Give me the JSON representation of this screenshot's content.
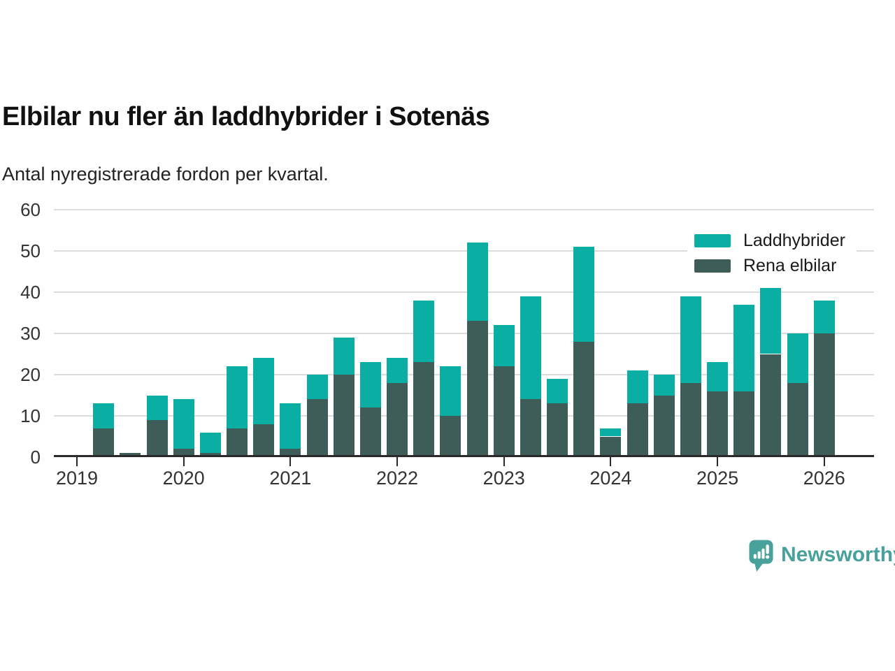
{
  "header": {
    "title": "Elbilar nu fler än laddhybrider i Sotenäs",
    "subtitle": "Antal nyregistrerade fordon per kvartal."
  },
  "chart_data": {
    "type": "bar",
    "stacked": true,
    "title": "Elbilar nu fler än laddhybrider i Sotenäs",
    "subtitle": "Antal nyregistrerade fordon per kvartal.",
    "xlabel": "",
    "ylabel": "",
    "ylim": [
      0,
      60
    ],
    "yticks": [
      0,
      10,
      20,
      30,
      40,
      50,
      60
    ],
    "grid": "horizontal",
    "legend_position": "top-right",
    "x_tick_labels": [
      "2019",
      "2020",
      "2021",
      "2022",
      "2023",
      "2024",
      "2025",
      "2026"
    ],
    "categories": [
      "2019 Q1",
      "2019 Q2",
      "2019 Q3",
      "2019 Q4",
      "2020 Q1",
      "2020 Q2",
      "2020 Q3",
      "2020 Q4",
      "2021 Q1",
      "2021 Q2",
      "2021 Q3",
      "2021 Q4",
      "2022 Q1",
      "2022 Q2",
      "2022 Q3",
      "2022 Q4",
      "2023 Q1",
      "2023 Q2",
      "2023 Q3",
      "2023 Q4",
      "2024 Q1",
      "2024 Q2",
      "2024 Q3",
      "2024 Q4",
      "2025 Q1",
      "2025 Q2",
      "2025 Q3",
      "2025 Q4",
      "2026 Q1"
    ],
    "series": [
      {
        "name": "Laddhybrider",
        "color": "#0baea3",
        "values": [
          0,
          6,
          0,
          6,
          12,
          5,
          15,
          16,
          11,
          6,
          9,
          11,
          6,
          15,
          12,
          19,
          10,
          25,
          6,
          23,
          2,
          8,
          5,
          21,
          7,
          21,
          16,
          12,
          8
        ]
      },
      {
        "name": "Rena elbilar",
        "color": "#3e5d58",
        "values": [
          0,
          7,
          1,
          9,
          2,
          1,
          7,
          8,
          2,
          14,
          20,
          12,
          18,
          23,
          10,
          33,
          22,
          14,
          13,
          28,
          5,
          13,
          15,
          18,
          16,
          16,
          25,
          18,
          30
        ]
      }
    ],
    "totals": [
      0,
      13,
      1,
      15,
      14,
      6,
      22,
      24,
      13,
      20,
      29,
      23,
      24,
      38,
      22,
      52,
      32,
      39,
      19,
      51,
      7,
      21,
      20,
      39,
      23,
      37,
      41,
      30,
      38
    ]
  },
  "legend": {
    "items": [
      {
        "label": "Laddhybrider",
        "color": "#0baea3"
      },
      {
        "label": "Rena elbilar",
        "color": "#3e5d58"
      }
    ]
  },
  "branding": {
    "name": "Newsworthy",
    "color": "#48a19b",
    "icon": "newsworthy-logo-icon"
  }
}
